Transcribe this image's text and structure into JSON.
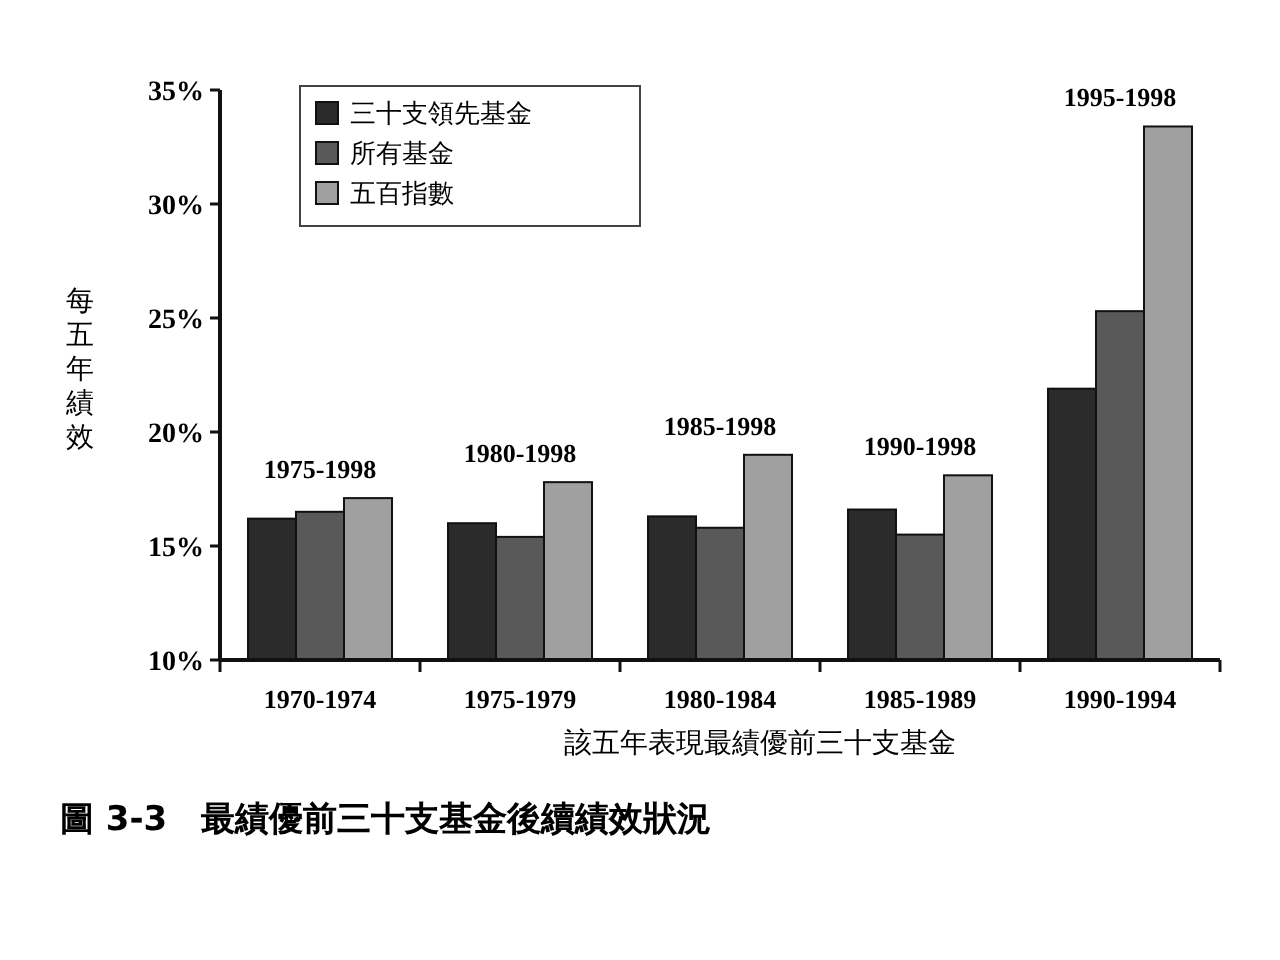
{
  "chart_data": {
    "type": "bar",
    "title": "圖 3-3　最績優前三十支基金後續績效狀況",
    "xlabel": "該五年表現最績優前三十支基金",
    "ylabel": "每五年績效",
    "categories": [
      "1970-1974",
      "1975-1979",
      "1980-1984",
      "1985-1989",
      "1990-1994"
    ],
    "series": [
      {
        "name": "三十支領先基金",
        "color": "#2b2b2b",
        "values": [
          16.2,
          16.0,
          16.3,
          16.6,
          21.9
        ]
      },
      {
        "name": "所有基金",
        "color": "#595959",
        "values": [
          16.5,
          15.4,
          15.8,
          15.5,
          25.3
        ]
      },
      {
        "name": "五百指數",
        "color": "#a0a0a0",
        "values": [
          17.1,
          17.8,
          19.0,
          18.1,
          33.4
        ]
      }
    ],
    "ylim": [
      10,
      35
    ],
    "yticks": [
      {
        "value": 10,
        "label": "10%"
      },
      {
        "value": 15,
        "label": "15%"
      },
      {
        "value": 20,
        "label": "20%"
      },
      {
        "value": 25,
        "label": "25%"
      },
      {
        "value": 30,
        "label": "30%"
      },
      {
        "value": 35,
        "label": "35%"
      }
    ],
    "annotations": [
      "1975-1998",
      "1980-1998",
      "1985-1998",
      "1990-1998",
      "1995-1998"
    ],
    "legend": "top left",
    "grid": false
  }
}
